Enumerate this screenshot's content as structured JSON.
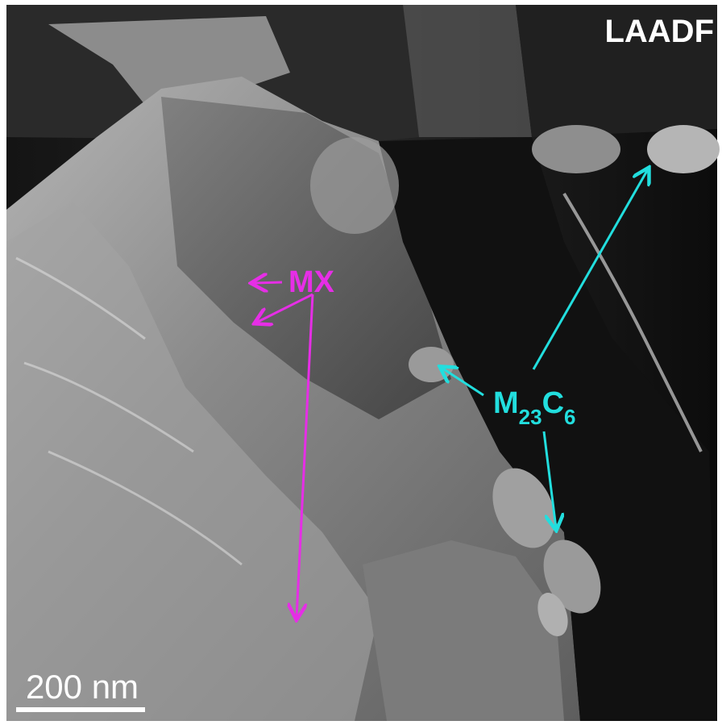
{
  "mode_label": "LAADF",
  "labels": {
    "mx": "MX",
    "m23c6": {
      "parts": [
        "M",
        "23",
        "C",
        "6"
      ]
    }
  },
  "scale_bar": {
    "label": "200 nm"
  }
}
